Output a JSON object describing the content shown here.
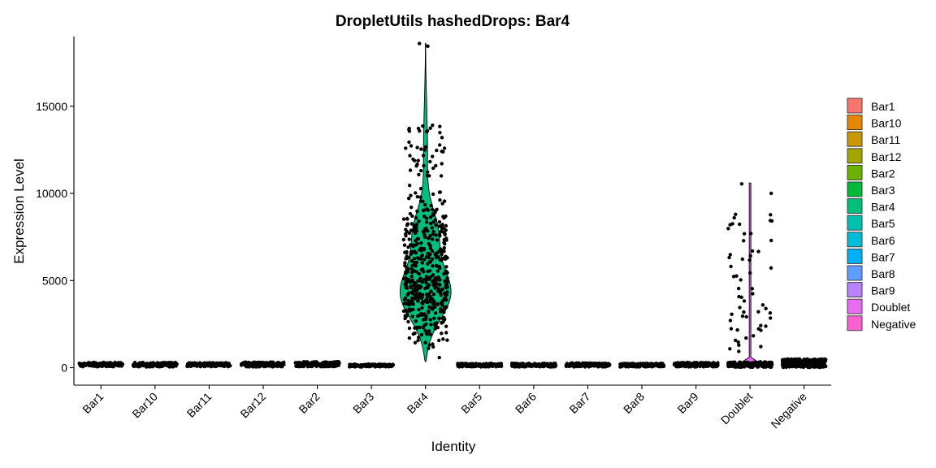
{
  "chart_data": {
    "type": "violin",
    "title": "DropletUtils hashedDrops: Bar4",
    "xlabel": "Identity",
    "ylabel": "Expression Level",
    "ylim": [
      -1000,
      19000
    ],
    "yticks": [
      0,
      5000,
      10000,
      15000
    ],
    "ytick_labels": [
      "0",
      "5000",
      "10000",
      "15000"
    ],
    "categories": [
      "Bar1",
      "Bar10",
      "Bar11",
      "Bar12",
      "Bar2",
      "Bar3",
      "Bar4",
      "Bar5",
      "Bar6",
      "Bar7",
      "Bar8",
      "Bar9",
      "Doublet",
      "Negative"
    ],
    "colors": [
      "#F8766D",
      "#E58700",
      "#C99800",
      "#A3A500",
      "#6BB100",
      "#00BA38",
      "#00BF7D",
      "#00C0AF",
      "#00BCD8",
      "#00B0F6",
      "#619CFF",
      "#B983FF",
      "#E76BF3",
      "#FD61D1"
    ],
    "series": [
      {
        "name": "Bar1",
        "min": 60,
        "max": 300,
        "median": 150
      },
      {
        "name": "Bar10",
        "min": 50,
        "max": 300,
        "median": 140
      },
      {
        "name": "Bar11",
        "min": 60,
        "max": 280,
        "median": 150
      },
      {
        "name": "Bar12",
        "min": 50,
        "max": 320,
        "median": 150
      },
      {
        "name": "Bar2",
        "min": 60,
        "max": 350,
        "median": 160
      },
      {
        "name": "Bar3",
        "min": 50,
        "max": 200,
        "median": 120
      },
      {
        "name": "Bar4",
        "min": 350,
        "max": 18600,
        "median": 4300
      },
      {
        "name": "Bar5",
        "min": 50,
        "max": 250,
        "median": 130
      },
      {
        "name": "Bar6",
        "min": 50,
        "max": 250,
        "median": 130
      },
      {
        "name": "Bar7",
        "min": 50,
        "max": 280,
        "median": 140
      },
      {
        "name": "Bar8",
        "min": 50,
        "max": 250,
        "median": 130
      },
      {
        "name": "Bar9",
        "min": 50,
        "max": 300,
        "median": 130
      },
      {
        "name": "Doublet",
        "min": 30,
        "max": 10600,
        "median": 150
      },
      {
        "name": "Negative",
        "min": 20,
        "max": 500,
        "median": 150
      }
    ],
    "legend": {
      "position": "right",
      "entries": [
        "Bar1",
        "Bar10",
        "Bar11",
        "Bar12",
        "Bar2",
        "Bar3",
        "Bar4",
        "Bar5",
        "Bar6",
        "Bar7",
        "Bar8",
        "Bar9",
        "Doublet",
        "Negative"
      ]
    },
    "grid": false
  }
}
